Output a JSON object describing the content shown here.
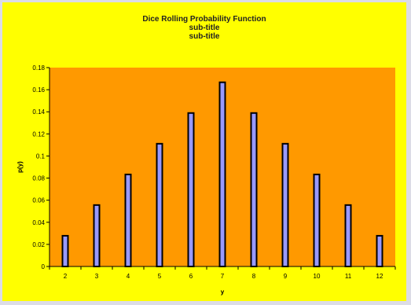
{
  "chart_data": {
    "type": "bar",
    "title": "Dice Rolling Probability Function",
    "subtitle_1": "sub-title",
    "subtitle_2": "sub-title",
    "xlabel": "y",
    "ylabel": "p(y)",
    "categories": [
      "2",
      "3",
      "4",
      "5",
      "6",
      "7",
      "8",
      "9",
      "10",
      "11",
      "12"
    ],
    "values": [
      0.0278,
      0.0556,
      0.0833,
      0.1111,
      0.1389,
      0.1667,
      0.1389,
      0.1111,
      0.0833,
      0.0556,
      0.0278
    ],
    "ylim": [
      0,
      0.18
    ],
    "yticks": [
      "0",
      "0.02",
      "0.04",
      "0.06",
      "0.08",
      "0.1",
      "0.12",
      "0.14",
      "0.16",
      "0.18"
    ],
    "grid": false,
    "legend": "none",
    "colors": {
      "background": "#ffff00",
      "plot_area": "#ff9900",
      "bar_fill": "#9999ff",
      "bar_stroke": "#000000"
    }
  }
}
